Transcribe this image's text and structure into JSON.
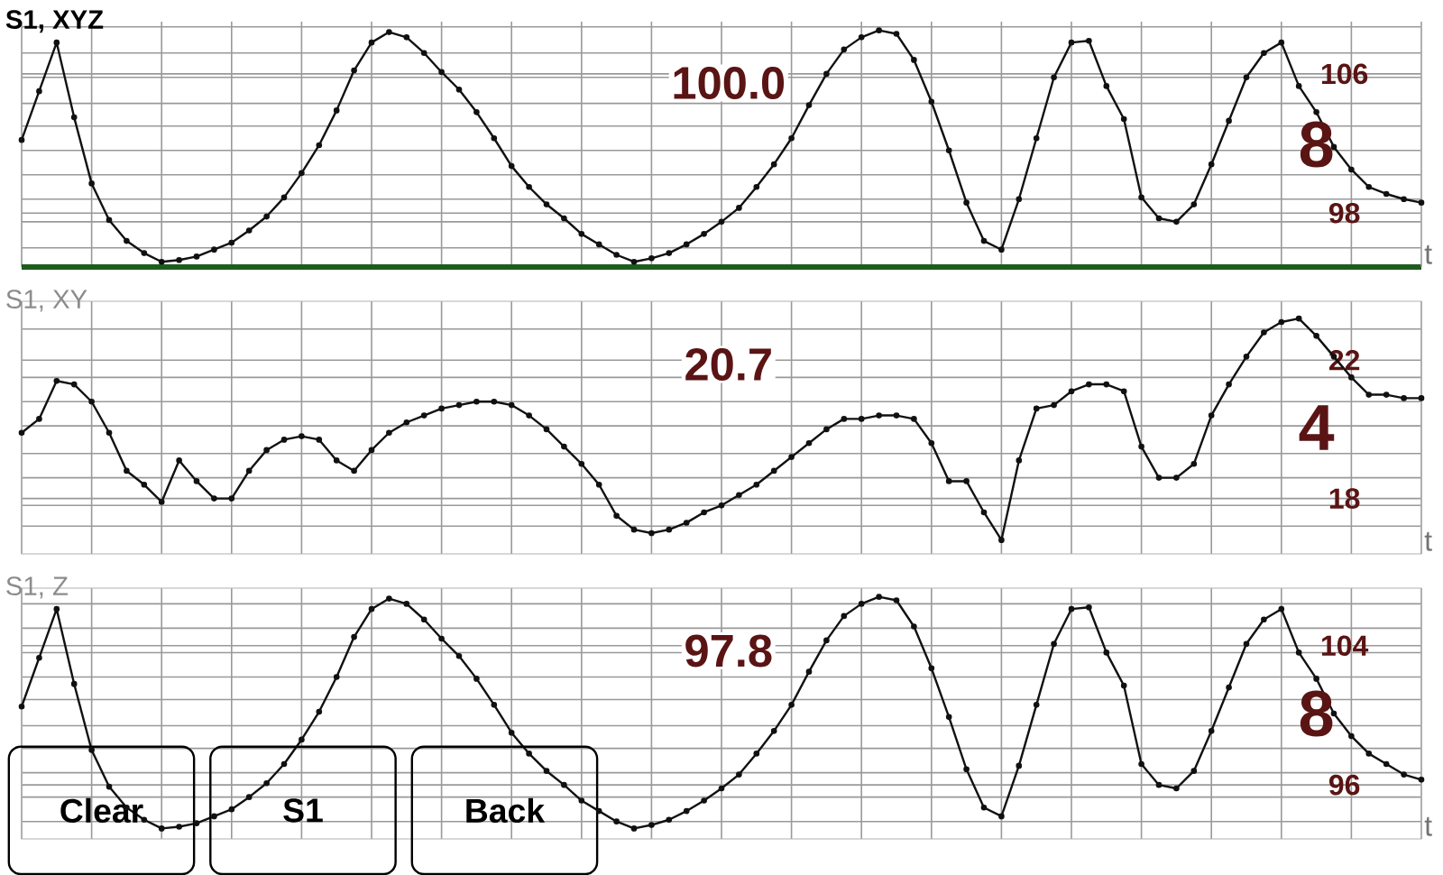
{
  "chart_data": [
    {
      "type": "line",
      "title": "S1, XYZ",
      "xlabel": "t",
      "grid": true,
      "marker": "circle",
      "tick_labels": "y",
      "categories": [
        null,
        null,
        null,
        null,
        null,
        null,
        null,
        null,
        null,
        null,
        null,
        null,
        null,
        null,
        null,
        null,
        null,
        null,
        null,
        null,
        null,
        null,
        null,
        null,
        null,
        null,
        null,
        null,
        null,
        null,
        null,
        null,
        null,
        null,
        null,
        null,
        null,
        null,
        null,
        null,
        null,
        null,
        null,
        null,
        null,
        null,
        null,
        null,
        null,
        null,
        null,
        null,
        null,
        null,
        null,
        null,
        null,
        null,
        null,
        null,
        null,
        null,
        null,
        null,
        null,
        null,
        null,
        null,
        null,
        null,
        null,
        null,
        null,
        null,
        null,
        null,
        null,
        null,
        null,
        null,
        null
      ],
      "ylim": [
        94.9,
        109.0
      ],
      "yticks": [
        {
          "value": 96.0,
          "label": null
        },
        {
          "value": 97.5,
          "label": null
        },
        98,
        {
          "value": 98.8,
          "label": null
        },
        {
          "value": 100.2,
          "label": null
        },
        {
          "value": 101.6,
          "label": null
        },
        {
          "value": 103.0,
          "label": null
        },
        {
          "value": 104.3,
          "label": null
        },
        {
          "value": 105.8,
          "label": null
        },
        106,
        {
          "value": 107.2,
          "label": null
        },
        {
          "value": 108.7,
          "label": null
        }
      ],
      "annotations": [
        "100.0",
        "8"
      ],
      "series": [
        {
          "color": "#111111",
          "values": [
            102.2,
            105.0,
            107.8,
            103.5,
            99.7,
            97.6,
            96.4,
            95.7,
            95.2,
            95.3,
            95.5,
            95.9,
            96.3,
            97.0,
            97.8,
            98.9,
            100.3,
            101.9,
            103.9,
            106.2,
            107.8,
            108.4,
            108.1,
            107.2,
            106.1,
            105.1,
            103.8,
            102.3,
            100.7,
            99.5,
            98.5,
            97.7,
            96.8,
            96.2,
            95.6,
            95.2,
            95.4,
            95.7,
            96.2,
            96.8,
            97.5,
            98.3,
            99.5,
            100.8,
            102.3,
            104.2,
            106.0,
            107.4,
            108.1,
            108.5,
            108.3,
            106.8,
            104.4,
            101.6,
            98.6,
            96.4,
            95.9,
            98.8,
            102.3,
            105.8,
            107.8,
            107.9,
            105.3,
            103.4,
            98.9,
            97.7,
            97.5,
            98.5,
            100.8,
            103.3,
            105.8,
            107.2,
            107.8,
            105.3,
            103.8,
            101.8,
            100.5,
            99.5,
            99.1,
            98.8,
            98.6
          ]
        }
      ]
    },
    {
      "type": "line",
      "title": "S1, XY",
      "xlabel": "t",
      "grid": true,
      "marker": "circle",
      "tick_labels": "y",
      "categories": [
        null,
        null,
        null,
        null,
        null,
        null,
        null,
        null,
        null,
        null,
        null,
        null,
        null,
        null,
        null,
        null,
        null,
        null,
        null,
        null,
        null,
        null,
        null,
        null,
        null,
        null,
        null,
        null,
        null,
        null,
        null,
        null,
        null,
        null,
        null,
        null,
        null,
        null,
        null,
        null,
        null,
        null,
        null,
        null,
        null,
        null,
        null,
        null,
        null,
        null,
        null,
        null,
        null,
        null,
        null,
        null,
        null,
        null,
        null,
        null,
        null,
        null,
        null,
        null,
        null,
        null,
        null,
        null,
        null,
        null,
        null,
        null,
        null,
        null,
        null,
        null,
        null,
        null,
        null,
        null,
        null
      ],
      "ylim": [
        16.4,
        23.7
      ],
      "yticks": [
        {
          "value": 17.2,
          "label": null
        },
        {
          "value": 17.8,
          "label": null
        },
        18,
        {
          "value": 18.6,
          "label": null
        },
        {
          "value": 19.3,
          "label": null
        },
        {
          "value": 20.1,
          "label": null
        },
        {
          "value": 20.8,
          "label": null
        },
        {
          "value": 21.5,
          "label": null
        },
        22,
        {
          "value": 22.9,
          "label": null
        }
      ],
      "annotations": [
        "20.7",
        "4"
      ],
      "series": [
        {
          "color": "#111111",
          "values": [
            19.9,
            20.3,
            21.4,
            21.3,
            20.8,
            19.9,
            18.8,
            18.4,
            17.9,
            19.1,
            18.5,
            18.0,
            18.0,
            18.8,
            19.4,
            19.7,
            19.8,
            19.7,
            19.1,
            18.8,
            19.4,
            19.9,
            20.2,
            20.4,
            20.6,
            20.7,
            20.8,
            20.8,
            20.7,
            20.4,
            20.0,
            19.5,
            19.0,
            18.4,
            17.5,
            17.1,
            17.0,
            17.1,
            17.3,
            17.6,
            17.8,
            18.1,
            18.4,
            18.8,
            19.2,
            19.6,
            20.0,
            20.3,
            20.3,
            20.4,
            20.4,
            20.3,
            19.6,
            18.5,
            18.5,
            17.6,
            16.8,
            19.1,
            20.6,
            20.7,
            21.1,
            21.3,
            21.3,
            21.1,
            19.5,
            18.6,
            18.6,
            19.0,
            20.4,
            21.3,
            22.1,
            22.8,
            23.1,
            23.2,
            22.7,
            22.1,
            21.5,
            21.0,
            21.0,
            20.9,
            20.9
          ]
        }
      ]
    },
    {
      "type": "line",
      "title": "S1, Z",
      "xlabel": "t",
      "grid": true,
      "marker": "circle",
      "tick_labels": "y",
      "categories": [
        null,
        null,
        null,
        null,
        null,
        null,
        null,
        null,
        null,
        null,
        null,
        null,
        null,
        null,
        null,
        null,
        null,
        null,
        null,
        null,
        null,
        null,
        null,
        null,
        null,
        null,
        null,
        null,
        null,
        null,
        null,
        null,
        null,
        null,
        null,
        null,
        null,
        null,
        null,
        null,
        null,
        null,
        null,
        null,
        null,
        null,
        null,
        null,
        null,
        null,
        null,
        null,
        null,
        null,
        null,
        null,
        null,
        null,
        null,
        null,
        null,
        null,
        null,
        null,
        null,
        null,
        null,
        null,
        null,
        null,
        null,
        null,
        null,
        null,
        null,
        null,
        null,
        null,
        null,
        null,
        null
      ],
      "ylim": [
        92.9,
        107.3
      ],
      "yticks": [
        {
          "value": 93.9,
          "label": null
        },
        {
          "value": 95.3,
          "label": null
        },
        96,
        {
          "value": 96.7,
          "label": null
        },
        {
          "value": 98.1,
          "label": null
        },
        {
          "value": 99.4,
          "label": null
        },
        {
          "value": 100.9,
          "label": null
        },
        {
          "value": 102.2,
          "label": null
        },
        {
          "value": 103.6,
          "label": null
        },
        104,
        {
          "value": 105.0,
          "label": null
        },
        {
          "value": 106.4,
          "label": null
        }
      ],
      "annotations": [
        "97.8",
        "8",
        "Clear",
        "S1",
        "Back"
      ],
      "series": [
        {
          "color": "#111111",
          "values": [
            100.5,
            103.3,
            106.1,
            101.8,
            98.0,
            95.9,
            94.7,
            94.0,
            93.5,
            93.6,
            93.8,
            94.2,
            94.6,
            95.3,
            96.1,
            97.2,
            98.6,
            100.2,
            102.2,
            104.5,
            106.1,
            106.7,
            106.4,
            105.5,
            104.4,
            103.4,
            102.1,
            100.6,
            99.0,
            97.8,
            96.8,
            96.0,
            95.1,
            94.5,
            93.9,
            93.5,
            93.7,
            94.0,
            94.5,
            95.1,
            95.8,
            96.6,
            97.8,
            99.1,
            100.6,
            102.5,
            104.3,
            105.7,
            106.4,
            106.8,
            106.6,
            105.1,
            102.7,
            99.9,
            96.9,
            94.7,
            94.2,
            97.1,
            100.6,
            104.1,
            106.1,
            106.2,
            103.6,
            101.7,
            97.2,
            96.0,
            95.8,
            96.8,
            99.1,
            101.6,
            104.1,
            105.5,
            106.1,
            103.6,
            102.1,
            100.1,
            98.8,
            97.8,
            97.2,
            96.6,
            96.3
          ]
        }
      ]
    }
  ]
}
